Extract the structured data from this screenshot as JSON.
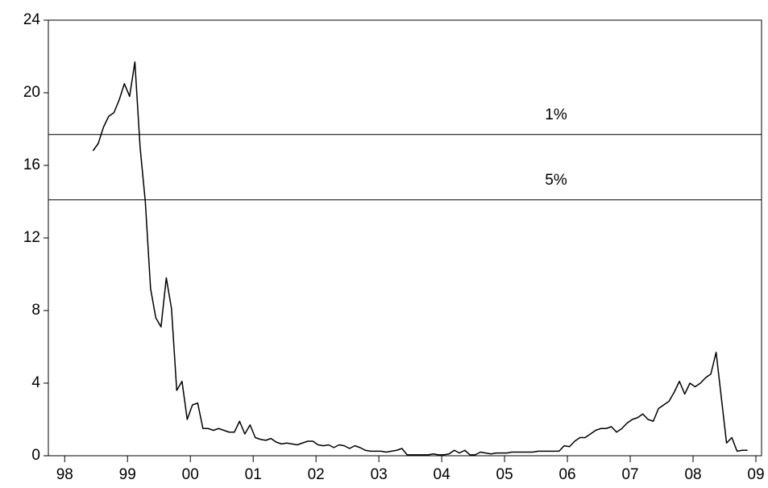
{
  "chart_data": {
    "type": "line",
    "x": [
      1998.95,
      1999.033,
      1999.117,
      1999.2,
      1999.283,
      1999.367,
      1999.45,
      1999.533,
      1999.617,
      1999.7,
      1999.783,
      1999.867,
      1999.95,
      2000.033,
      2000.117,
      2000.2,
      2000.283,
      2000.367,
      2000.45,
      2000.533,
      2000.617,
      2000.7,
      2000.783,
      2000.867,
      2000.95,
      2001.033,
      2001.117,
      2001.2,
      2001.283,
      2001.367,
      2001.45,
      2001.533,
      2001.617,
      2001.7,
      2001.783,
      2001.867,
      2001.95,
      2002.033,
      2002.117,
      2002.2,
      2002.283,
      2002.367,
      2002.45,
      2002.533,
      2002.617,
      2002.7,
      2002.783,
      2002.867,
      2002.95,
      2003.033,
      2003.117,
      2003.2,
      2003.283,
      2003.367,
      2003.45,
      2003.533,
      2003.617,
      2003.7,
      2003.783,
      2003.867,
      2003.95,
      2004.033,
      2004.117,
      2004.2,
      2004.283,
      2004.367,
      2004.45,
      2004.533,
      2004.617,
      2004.7,
      2004.783,
      2004.867,
      2004.95,
      2005.033,
      2005.117,
      2005.2,
      2005.283,
      2005.367,
      2005.45,
      2005.533,
      2005.617,
      2005.7,
      2005.783,
      2005.867,
      2005.95,
      2006.033,
      2006.117,
      2006.2,
      2006.283,
      2006.367,
      2006.45,
      2006.533,
      2006.617,
      2006.7,
      2006.783,
      2006.867,
      2006.95,
      2007.033,
      2007.117,
      2007.2,
      2007.283,
      2007.367,
      2007.45,
      2007.533,
      2007.617,
      2007.7,
      2007.783,
      2007.867,
      2007.95,
      2008.033,
      2008.117,
      2008.2,
      2008.283,
      2008.367,
      2008.45,
      2008.533,
      2008.617,
      2008.7,
      2008.783,
      2008.867,
      2008.95,
      2009.033,
      2009.117,
      2009.2,
      2009.283,
      2009.367
    ],
    "series": [
      {
        "color": "#000000",
        "values": [
          16.8,
          17.2,
          18.1,
          18.7,
          18.9,
          19.6,
          20.5,
          19.8,
          21.7,
          17.0,
          14.0,
          9.2,
          7.6,
          7.1,
          9.8,
          8.1,
          3.6,
          4.1,
          2.0,
          2.8,
          2.9,
          1.5,
          1.5,
          1.4,
          1.5,
          1.4,
          1.3,
          1.3,
          1.9,
          1.2,
          1.7,
          1.0,
          0.9,
          0.85,
          0.95,
          0.75,
          0.65,
          0.7,
          0.65,
          0.6,
          0.7,
          0.8,
          0.8,
          0.6,
          0.55,
          0.6,
          0.45,
          0.6,
          0.55,
          0.4,
          0.55,
          0.45,
          0.3,
          0.25,
          0.25,
          0.25,
          0.2,
          0.25,
          0.3,
          0.4,
          0.05,
          0.05,
          0.05,
          0.05,
          0.05,
          0.1,
          0.05,
          0.05,
          0.1,
          0.3,
          0.15,
          0.3,
          0.05,
          0.05,
          0.2,
          0.15,
          0.1,
          0.15,
          0.15,
          0.15,
          0.2,
          0.2,
          0.2,
          0.2,
          0.2,
          0.25,
          0.25,
          0.25,
          0.25,
          0.25,
          0.55,
          0.5,
          0.8,
          1.0,
          1.0,
          1.2,
          1.4,
          1.5,
          1.5,
          1.6,
          1.3,
          1.5,
          1.8,
          2.0,
          2.1,
          2.3,
          2.0,
          1.9,
          2.6,
          2.8,
          3.0,
          3.5,
          4.1,
          3.4,
          4.0,
          3.8,
          4.0,
          4.3,
          4.5,
          5.7,
          3.2,
          0.7,
          1.0,
          0.25,
          0.3,
          0.3
        ]
      }
    ],
    "reference_lines": [
      {
        "value": 17.7,
        "label": "1%"
      },
      {
        "value": 14.1,
        "label": "5%"
      }
    ],
    "xlim": [
      1998.24,
      2009.59
    ],
    "xticks": [
      {
        "value": 1998.5,
        "label": "98"
      },
      {
        "value": 1999.5,
        "label": "99"
      },
      {
        "value": 2000.5,
        "label": "00"
      },
      {
        "value": 2001.5,
        "label": "01"
      },
      {
        "value": 2002.5,
        "label": "02"
      },
      {
        "value": 2003.5,
        "label": "03"
      },
      {
        "value": 2004.5,
        "label": "04"
      },
      {
        "value": 2005.5,
        "label": "05"
      },
      {
        "value": 2006.5,
        "label": "06"
      },
      {
        "value": 2007.5,
        "label": "07"
      },
      {
        "value": 2008.5,
        "label": "08"
      },
      {
        "value": 2009.5,
        "label": "09"
      }
    ],
    "ylim": [
      0,
      24
    ],
    "yticks": [
      0,
      4,
      8,
      12,
      16,
      20,
      24
    ]
  }
}
